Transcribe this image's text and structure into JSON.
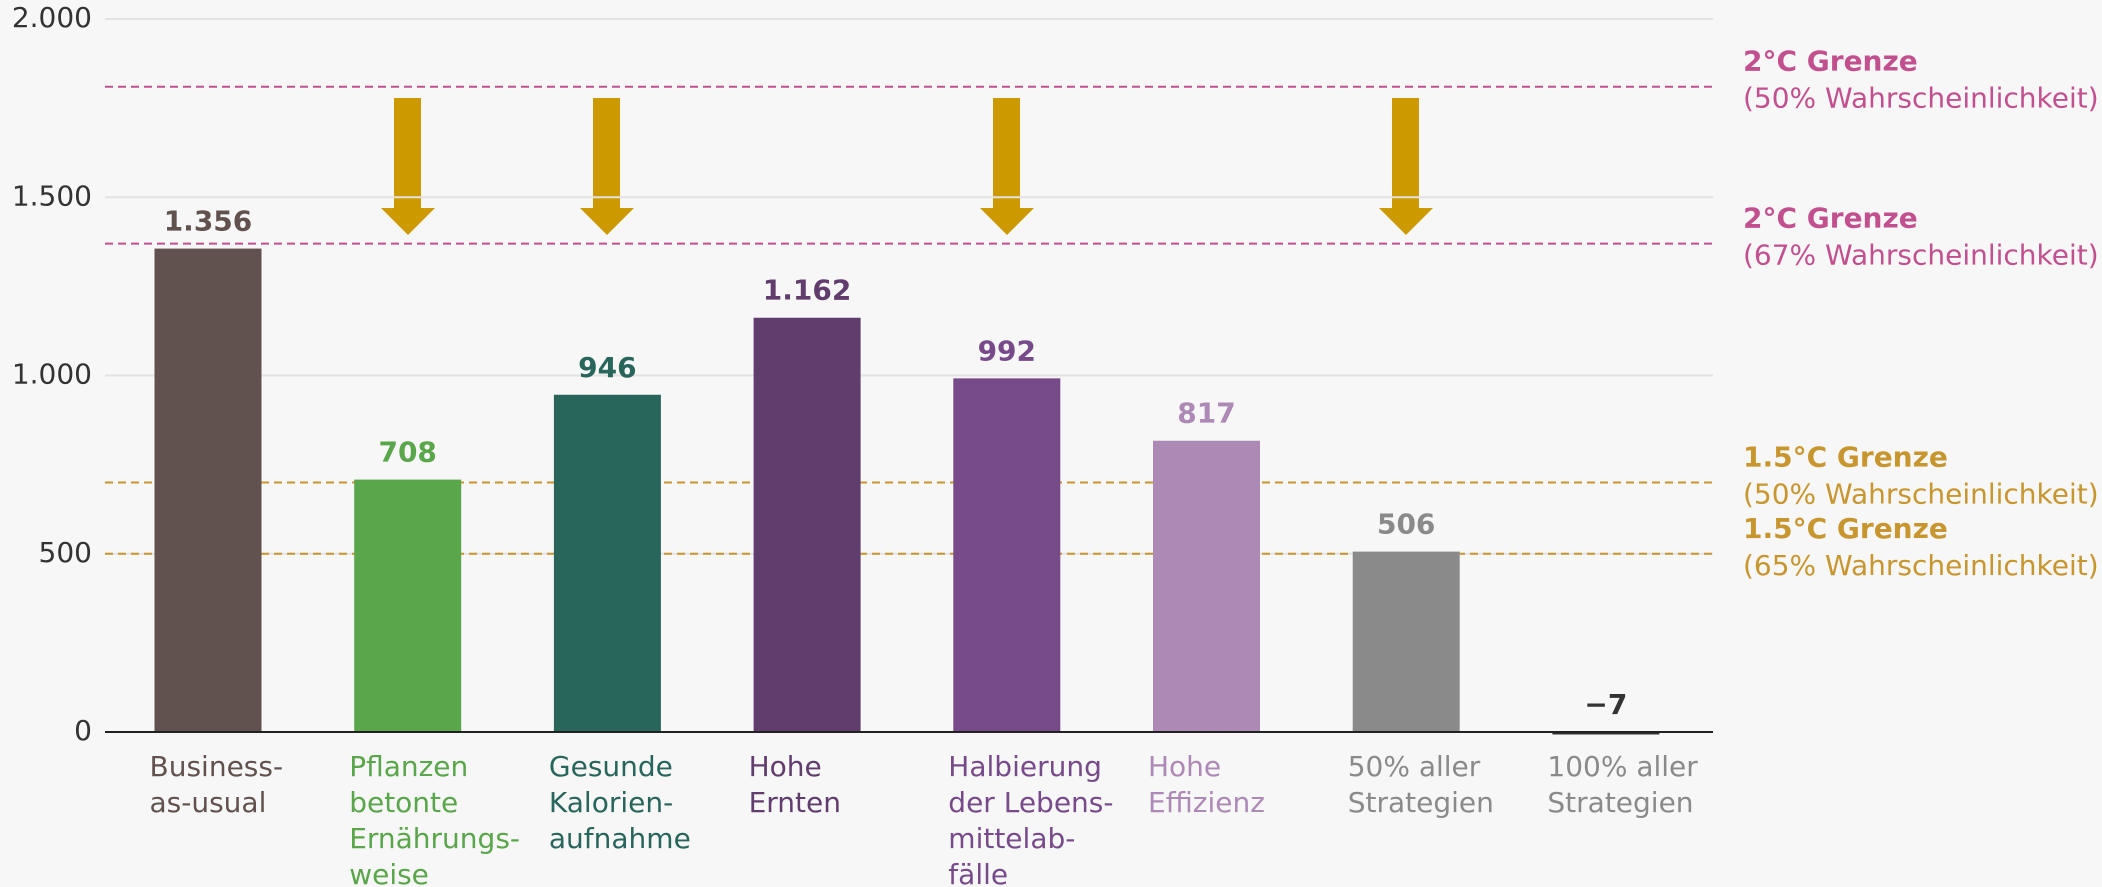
{
  "chart_data": {
    "type": "bar",
    "categories": [
      "Business-\nas-usual",
      "Pflanzen\nbetonte\nErnährungs-\nweise",
      "Gesunde\nKalorien-\naufnahme",
      "Hohe\nErnten",
      "Halbierung\nder Lebens-\nmittelab-\nfälle",
      "Hohe\nEffizienz",
      "50% aller\nStrategien",
      "100% aller\nStrategien"
    ],
    "values": [
      1356,
      708,
      946,
      1162,
      992,
      817,
      506,
      -7
    ],
    "value_labels": [
      "1.356",
      "708",
      "946",
      "1.162",
      "992",
      "817",
      "506",
      "−7"
    ],
    "colors": [
      "#62524f",
      "#5aa64a",
      "#28665c",
      "#613d6d",
      "#774a8a",
      "#ad89b5",
      "#8a8a8a",
      "#333333"
    ],
    "label_colors": [
      "#62524f",
      "#5aa64a",
      "#28665c",
      "#613d6d",
      "#774a8a",
      "#ad89b5",
      "#8a8a8a",
      "#8a8a8a"
    ],
    "value_label_colors": [
      "#62524f",
      "#5aa64a",
      "#28665c",
      "#613d6d",
      "#774a8a",
      "#ad89b5",
      "#8a8a8a",
      "#333333"
    ],
    "ylim": [
      0,
      2000
    ],
    "yticks": [
      0,
      500,
      {
        "value": 1000,
        "label": "1.000"
      },
      {
        "value": 1500,
        "label": "1.500"
      },
      {
        "value": 2000,
        "label": "2.000"
      }
    ],
    "grid": true,
    "reference_lines": [
      {
        "value": 1810,
        "title": "2°C Grenze",
        "label": "(50% Wahrscheinlichkeit)",
        "color": "#c2508f"
      },
      {
        "value": 1370,
        "title": "2°C Grenze",
        "label": "(67% Wahrscheinlichkeit)",
        "color": "#c2508f"
      },
      {
        "value": 700,
        "title": "1.5°C Grenze",
        "label": "(50% Wahrscheinlichkeit)",
        "color": "#c8962e"
      },
      {
        "value": 500,
        "title": "1.5°C Grenze",
        "label": "(65% Wahrscheinlichkeit)",
        "color": "#c8962e"
      }
    ]
  }
}
